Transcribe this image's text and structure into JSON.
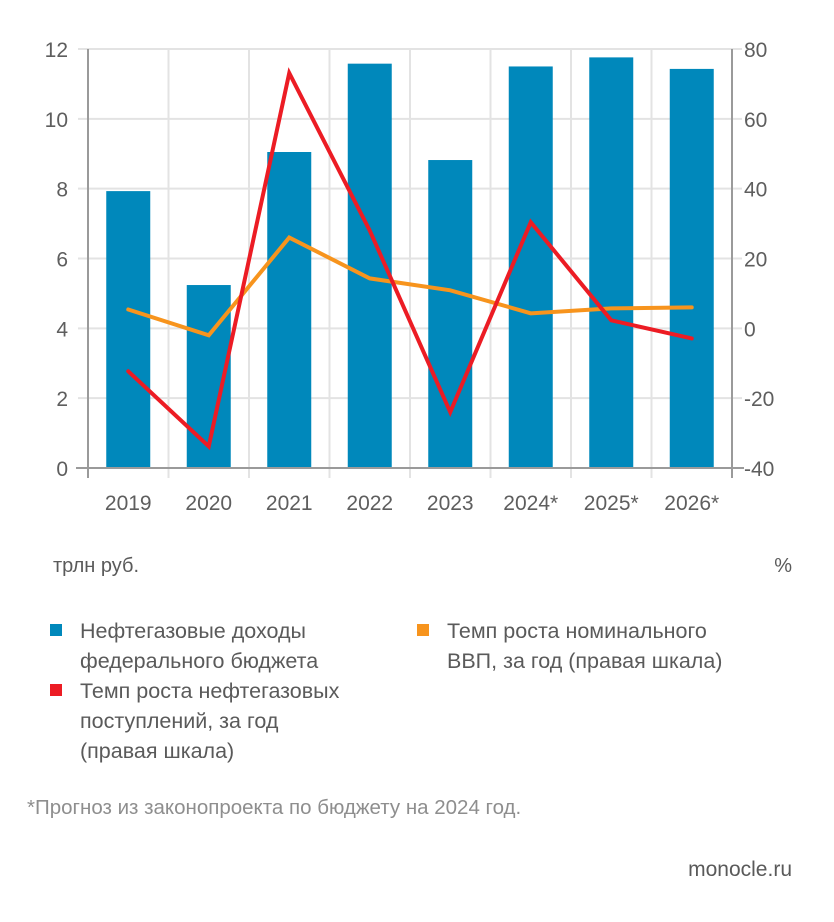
{
  "chart_data": {
    "type": "bar",
    "categories": [
      "2019",
      "2020",
      "2021",
      "2022",
      "2023",
      "2024*",
      "2025*",
      "2026*"
    ],
    "series": [
      {
        "name": "Нефтегазовые доходы федерального бюджета",
        "kind": "bar",
        "axis": "left",
        "color": "#0088bb",
        "values": [
          7.93,
          5.24,
          9.05,
          11.58,
          8.82,
          11.5,
          11.76,
          11.43
        ]
      },
      {
        "name": "Темп роста нефтегазовых поступлений, за год (правая шкала)",
        "kind": "line",
        "axis": "right",
        "color": "#ec1c24",
        "values": [
          -12.3,
          -33.8,
          73.1,
          28.0,
          -24.0,
          30.4,
          2.3,
          -2.9
        ]
      },
      {
        "name": "Темп роста номинального ВВП, за год (правая шкала)",
        "kind": "line",
        "axis": "right",
        "color": "#f7941d",
        "values": [
          5.4,
          -2.0,
          26.0,
          14.3,
          10.9,
          4.3,
          5.7,
          6.0
        ]
      }
    ],
    "y_left": {
      "label": "трлн руб.",
      "lim": [
        0,
        12
      ],
      "ticks": [
        "0",
        "2",
        "4",
        "6",
        "8",
        "10",
        "12"
      ]
    },
    "y_right": {
      "label": "%",
      "lim": [
        -40,
        80
      ],
      "ticks": [
        "-40",
        "-20",
        "0",
        "20",
        "40",
        "60",
        "80"
      ]
    },
    "grid": true,
    "legend_position": "bottom"
  },
  "legend": [
    {
      "label_lines": [
        "Нефтегазовые доходы",
        "федерального бюджета"
      ],
      "color": "#0088bb"
    },
    {
      "label_lines": [
        "Темп роста нефтегазовых",
        "поступлений, за год",
        "(правая шкала)"
      ],
      "color": "#ec1c24"
    },
    {
      "label_lines": [
        "Темп роста номинального",
        "ВВП, за год (правая шкала)"
      ],
      "color": "#f7941d"
    }
  ],
  "units": {
    "left": "трлн руб.",
    "right": "%"
  },
  "footnote": "*Прогноз из законопроекта по бюджету на 2024 год.",
  "source": "monocle.ru"
}
